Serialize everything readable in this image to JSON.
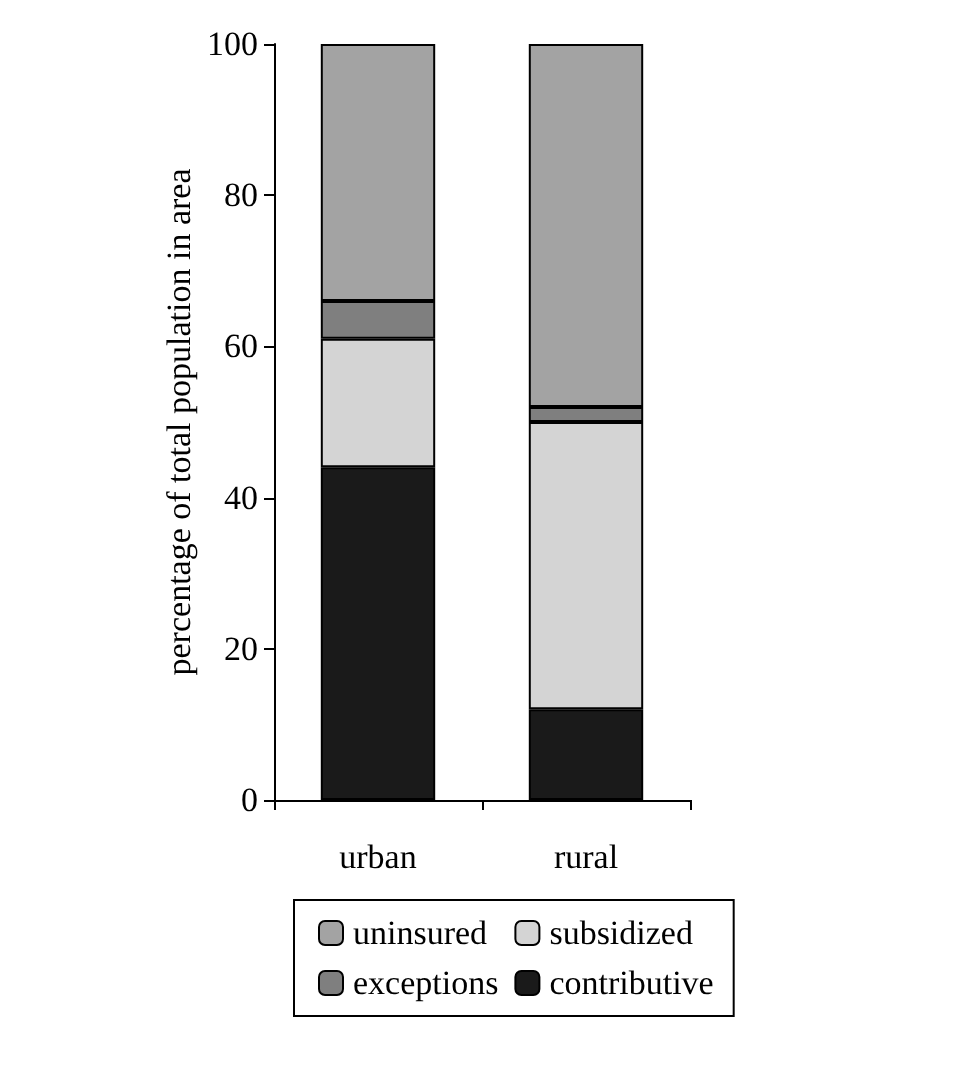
{
  "chart_data": {
    "type": "bar",
    "ylabel": "percentage of total population in area",
    "categories": [
      "urban",
      "rural"
    ],
    "stacked": true,
    "ylim": [
      0,
      100
    ],
    "yticks": [
      0,
      20,
      40,
      60,
      80,
      100
    ],
    "grid": false,
    "legend": "bottom",
    "series": [
      {
        "name": "contributive",
        "color": "#1a1a1a",
        "values": [
          44,
          12
        ]
      },
      {
        "name": "subsidized",
        "color": "#d4d4d4",
        "values": [
          17,
          38
        ]
      },
      {
        "name": "exceptions",
        "color": "#7f7f7f",
        "values": [
          5,
          2
        ]
      },
      {
        "name": "uninsured",
        "color": "#a3a3a3",
        "values": [
          34,
          48
        ]
      }
    ]
  }
}
